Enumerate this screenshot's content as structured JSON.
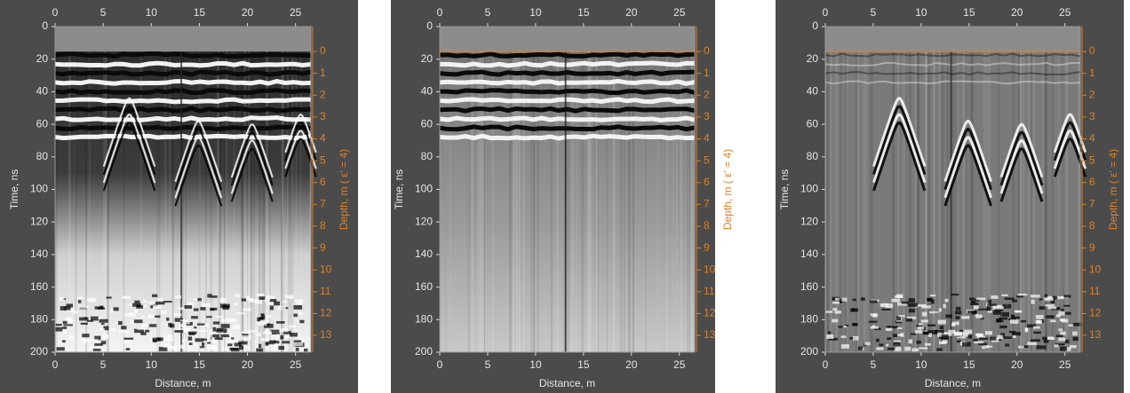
{
  "chart_data": [
    {
      "type": "radargram",
      "xlabel": "Distance, m",
      "ylabel": "Time, ns",
      "y2label": "Depth, m ( ε' = 4)",
      "xlim": [
        0,
        26.6
      ],
      "xticks": [
        0,
        5,
        10,
        15,
        20,
        25
      ],
      "ylim": [
        0,
        200
      ],
      "yticks": [
        0,
        20,
        40,
        60,
        80,
        100,
        120,
        140,
        160,
        180,
        200
      ],
      "y_inverted": true,
      "y2lim": [
        -1.14,
        13.77
      ],
      "y2ticks": [
        0,
        1,
        2,
        3,
        4,
        5,
        6,
        7,
        8,
        9,
        10,
        11,
        12,
        13
      ],
      "y2_color": "#d9822b",
      "surface_line": false
    },
    {
      "type": "radargram",
      "xlabel": "Distance, m",
      "ylabel": "Time, ns",
      "y2label": "Depth, m ( ε' = 4)",
      "xlim": [
        0,
        26.6
      ],
      "xticks": [
        0,
        5,
        10,
        15,
        20,
        25
      ],
      "ylim": [
        0,
        200
      ],
      "yticks": [
        0,
        20,
        40,
        60,
        80,
        100,
        120,
        140,
        160,
        180,
        200
      ],
      "y_inverted": true,
      "y2lim": [
        -1.14,
        13.77
      ],
      "y2ticks": [
        0,
        1,
        2,
        3,
        4,
        5,
        6,
        7,
        8,
        9,
        10,
        11,
        12,
        13
      ],
      "y2_color": "#d9822b",
      "surface_line": true
    },
    {
      "type": "radargram",
      "xlabel": "Distance, m",
      "ylabel": "Time, ns",
      "y2label": "Depth, m ( ε' = 4)",
      "xlim": [
        0,
        26.6
      ],
      "xticks": [
        0,
        5,
        10,
        15,
        20,
        25
      ],
      "ylim": [
        0,
        200
      ],
      "yticks": [
        0,
        20,
        40,
        60,
        80,
        100,
        120,
        140,
        160,
        180,
        200
      ],
      "y_inverted": true,
      "y2lim": [
        -1.14,
        13.77
      ],
      "y2ticks": [
        0,
        1,
        2,
        3,
        4,
        5,
        6,
        7,
        8,
        9,
        10,
        11,
        12,
        13
      ],
      "y2_color": "#d9822b",
      "surface_line": true
    }
  ]
}
